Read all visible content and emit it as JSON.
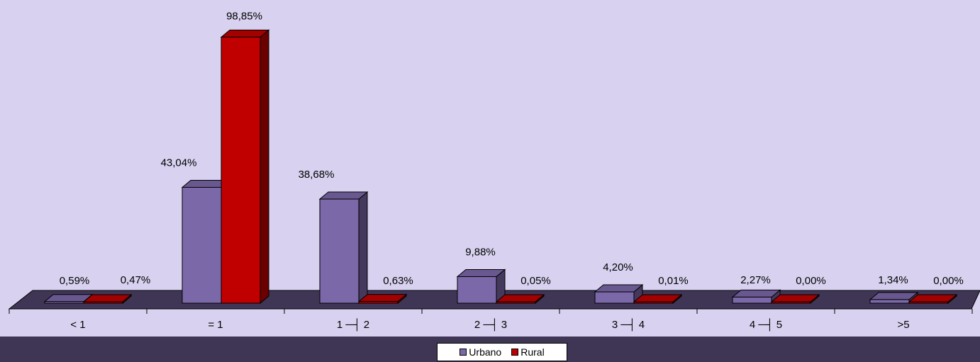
{
  "chart_data": {
    "type": "bar",
    "categories": [
      "< 1",
      "= 1",
      "1 ─┤ 2",
      "2 ─┤ 3",
      "3 ─┤ 4",
      "4 ─┤ 5",
      ">5"
    ],
    "series": [
      {
        "name": "Urbano",
        "color": "#7b68a8",
        "values": [
          0.59,
          43.04,
          38.68,
          9.88,
          4.2,
          2.27,
          1.34
        ],
        "labels": [
          "0,59%",
          "43,04%",
          "38,68%",
          "9,88%",
          "4,20%",
          "2,27%",
          "1,34%"
        ]
      },
      {
        "name": "Rural",
        "color": "#c00000",
        "values": [
          0.47,
          98.85,
          0.63,
          0.05,
          0.01,
          0.0,
          0.0
        ],
        "labels": [
          "0,47%",
          "98,85%",
          "0,63%",
          "0,05%",
          "0,01%",
          "0,00%",
          "0,00%"
        ]
      }
    ],
    "ylim": [
      0,
      100
    ],
    "grid": false,
    "legend_position": "bottom-center",
    "background": "#d8d2f0",
    "floor_color": "#3f3656"
  }
}
